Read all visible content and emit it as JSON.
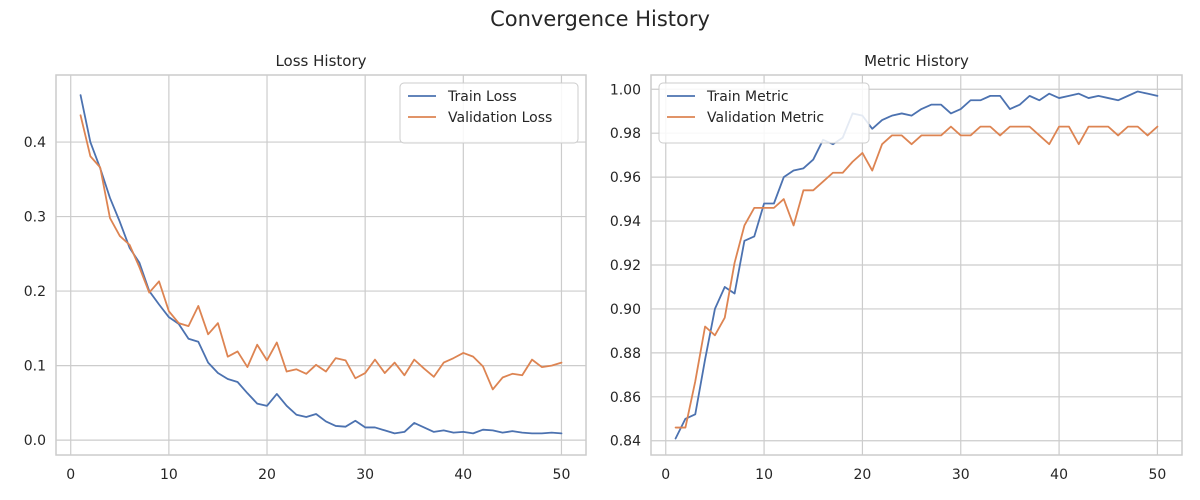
{
  "figure_title": "Convergence History",
  "colors": {
    "train": "#4c72b0",
    "validation": "#dd8452",
    "grid": "#cccccc",
    "spine": "#cccccc",
    "text": "#262626"
  },
  "chart_data": [
    {
      "type": "line",
      "title": "Loss History",
      "xlabel": "",
      "ylabel": "",
      "xlim": [
        -1.5,
        52.5
      ],
      "ylim": [
        -0.02,
        0.49
      ],
      "xticks": [
        0,
        10,
        20,
        30,
        40,
        50
      ],
      "yticks": [
        0.0,
        0.1,
        0.2,
        0.3,
        0.4
      ],
      "ytick_labels": [
        "0.0",
        "0.1",
        "0.2",
        "0.3",
        "0.4"
      ],
      "grid": true,
      "legend_position": "upper right",
      "x": [
        1,
        2,
        3,
        4,
        5,
        6,
        7,
        8,
        9,
        10,
        11,
        12,
        13,
        14,
        15,
        16,
        17,
        18,
        19,
        20,
        21,
        22,
        23,
        24,
        25,
        26,
        27,
        28,
        29,
        30,
        31,
        32,
        33,
        34,
        35,
        36,
        37,
        38,
        39,
        40,
        41,
        42,
        43,
        44,
        45,
        46,
        47,
        48,
        49,
        50
      ],
      "series": [
        {
          "name": "Train Loss",
          "color_key": "train",
          "values": [
            0.463,
            0.4,
            0.365,
            0.325,
            0.293,
            0.258,
            0.238,
            0.2,
            0.182,
            0.165,
            0.156,
            0.136,
            0.132,
            0.104,
            0.09,
            0.082,
            0.078,
            0.063,
            0.049,
            0.046,
            0.062,
            0.046,
            0.034,
            0.031,
            0.035,
            0.025,
            0.019,
            0.018,
            0.026,
            0.017,
            0.017,
            0.013,
            0.009,
            0.011,
            0.023,
            0.017,
            0.011,
            0.013,
            0.01,
            0.011,
            0.009,
            0.014,
            0.013,
            0.01,
            0.012,
            0.01,
            0.009,
            0.009,
            0.01,
            0.009
          ]
        },
        {
          "name": "Validation Loss",
          "color_key": "validation",
          "values": [
            0.436,
            0.381,
            0.366,
            0.298,
            0.274,
            0.262,
            0.232,
            0.198,
            0.213,
            0.173,
            0.157,
            0.153,
            0.18,
            0.142,
            0.157,
            0.112,
            0.119,
            0.098,
            0.128,
            0.107,
            0.131,
            0.092,
            0.095,
            0.089,
            0.101,
            0.092,
            0.11,
            0.107,
            0.083,
            0.09,
            0.108,
            0.09,
            0.104,
            0.087,
            0.108,
            0.096,
            0.085,
            0.104,
            0.11,
            0.117,
            0.112,
            0.099,
            0.068,
            0.084,
            0.089,
            0.087,
            0.108,
            0.098,
            0.1,
            0.104
          ]
        }
      ]
    },
    {
      "type": "line",
      "title": "Metric History",
      "xlabel": "",
      "ylabel": "",
      "xlim": [
        -1.5,
        52.5
      ],
      "ylim": [
        0.8335,
        1.0065
      ],
      "xticks": [
        0,
        10,
        20,
        30,
        40,
        50
      ],
      "yticks": [
        0.84,
        0.86,
        0.88,
        0.9,
        0.92,
        0.94,
        0.96,
        0.98,
        1.0
      ],
      "ytick_labels": [
        "0.84",
        "0.86",
        "0.88",
        "0.90",
        "0.92",
        "0.94",
        "0.96",
        "0.98",
        "1.00"
      ],
      "grid": true,
      "legend_position": "upper left",
      "x": [
        1,
        2,
        3,
        4,
        5,
        6,
        7,
        8,
        9,
        10,
        11,
        12,
        13,
        14,
        15,
        16,
        17,
        18,
        19,
        20,
        21,
        22,
        23,
        24,
        25,
        26,
        27,
        28,
        29,
        30,
        31,
        32,
        33,
        34,
        35,
        36,
        37,
        38,
        39,
        40,
        41,
        42,
        43,
        44,
        45,
        46,
        47,
        48,
        49,
        50
      ],
      "series": [
        {
          "name": "Train Metric",
          "color_key": "train",
          "values": [
            0.841,
            0.85,
            0.852,
            0.877,
            0.9,
            0.91,
            0.907,
            0.931,
            0.933,
            0.948,
            0.948,
            0.96,
            0.963,
            0.964,
            0.968,
            0.977,
            0.975,
            0.978,
            0.989,
            0.988,
            0.982,
            0.986,
            0.988,
            0.989,
            0.988,
            0.991,
            0.993,
            0.993,
            0.989,
            0.991,
            0.995,
            0.995,
            0.997,
            0.997,
            0.991,
            0.993,
            0.997,
            0.995,
            0.998,
            0.996,
            0.997,
            0.998,
            0.996,
            0.997,
            0.996,
            0.995,
            0.997,
            0.999,
            0.998,
            0.997
          ]
        },
        {
          "name": "Validation Metric",
          "color_key": "validation",
          "values": [
            0.846,
            0.846,
            0.867,
            0.892,
            0.888,
            0.896,
            0.921,
            0.938,
            0.946,
            0.946,
            0.946,
            0.95,
            0.938,
            0.954,
            0.954,
            0.958,
            0.962,
            0.962,
            0.967,
            0.971,
            0.963,
            0.975,
            0.979,
            0.979,
            0.975,
            0.979,
            0.979,
            0.979,
            0.983,
            0.979,
            0.979,
            0.983,
            0.983,
            0.979,
            0.983,
            0.983,
            0.983,
            0.979,
            0.975,
            0.983,
            0.983,
            0.975,
            0.983,
            0.983,
            0.983,
            0.979,
            0.983,
            0.983,
            0.979,
            0.983
          ]
        }
      ]
    }
  ]
}
